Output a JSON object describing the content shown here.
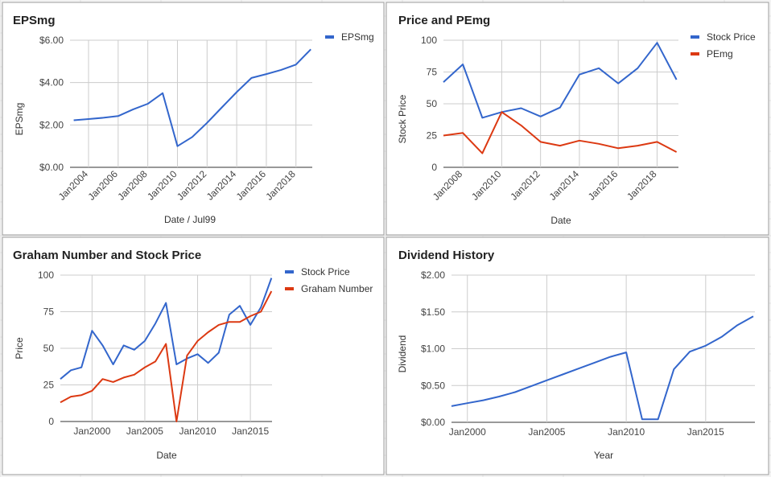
{
  "chart_data": [
    {
      "type": "line",
      "title": "EPSmg",
      "xlabel": "Date / Jul99",
      "ylabel": "EPSmg",
      "ylim": [
        0,
        6
      ],
      "yticks": [
        "$0.00",
        "$2.00",
        "$4.00",
        "$6.00"
      ],
      "xticks": [
        "Jan2004",
        "Jan2006",
        "Jan2008",
        "Jan2010",
        "Jan2012",
        "Jan2014",
        "Jan2016",
        "Jan2018"
      ],
      "legend_position": "right",
      "grid": true,
      "series": [
        {
          "name": "EPSmg",
          "color": "#3366cc",
          "points": [
            [
              "2003-01",
              2.22
            ],
            [
              "2004-01",
              2.28
            ],
            [
              "2005-01",
              2.34
            ],
            [
              "2006-01",
              2.42
            ],
            [
              "2007-01",
              2.73
            ],
            [
              "2008-01",
              3.0
            ],
            [
              "2009-01",
              3.5
            ],
            [
              "2010-01",
              1.0
            ],
            [
              "2011-01",
              1.43
            ],
            [
              "2012-01",
              2.1
            ],
            [
              "2013-01",
              2.83
            ],
            [
              "2014-01",
              3.55
            ],
            [
              "2015-01",
              4.22
            ],
            [
              "2016-01",
              4.4
            ],
            [
              "2017-01",
              4.6
            ],
            [
              "2018-01",
              4.85
            ],
            [
              "2019-01",
              5.57
            ]
          ]
        }
      ]
    },
    {
      "type": "line",
      "title": "Price and PEmg",
      "xlabel": "Date",
      "ylabel": "Stock Price",
      "ylim": [
        0,
        100
      ],
      "yticks": [
        "0",
        "25",
        "50",
        "75",
        "100"
      ],
      "xticks": [
        "Jan2008",
        "Jan2010",
        "Jan2012",
        "Jan2014",
        "Jan2016",
        "Jan2018"
      ],
      "legend_position": "right",
      "grid": true,
      "series": [
        {
          "name": "Stock Price",
          "color": "#3366cc",
          "points": [
            [
              "2007-01",
              67
            ],
            [
              "2008-01",
              81
            ],
            [
              "2009-01",
              39
            ],
            [
              "2010-01",
              43.5
            ],
            [
              "2011-01",
              46.5
            ],
            [
              "2012-01",
              40
            ],
            [
              "2013-01",
              47
            ],
            [
              "2014-01",
              73
            ],
            [
              "2015-01",
              78
            ],
            [
              "2016-01",
              66
            ],
            [
              "2017-01",
              78
            ],
            [
              "2018-01",
              98
            ],
            [
              "2019-01",
              69
            ]
          ]
        },
        {
          "name": "PEmg",
          "color": "#dc3912",
          "points": [
            [
              "2007-01",
              25
            ],
            [
              "2008-01",
              27
            ],
            [
              "2009-01",
              11
            ],
            [
              "2010-01",
              43.5
            ],
            [
              "2011-01",
              33
            ],
            [
              "2012-01",
              20
            ],
            [
              "2013-01",
              17
            ],
            [
              "2014-01",
              21
            ],
            [
              "2015-01",
              18.5
            ],
            [
              "2016-01",
              15
            ],
            [
              "2017-01",
              17
            ],
            [
              "2018-01",
              20
            ],
            [
              "2019-01",
              12
            ]
          ]
        }
      ]
    },
    {
      "type": "line",
      "title": "Graham Number and Stock Price",
      "xlabel": "Date",
      "ylabel": "Price",
      "ylim": [
        0,
        100
      ],
      "yticks": [
        "0",
        "25",
        "50",
        "75",
        "100"
      ],
      "xticks": [
        "Jan2000",
        "Jan2005",
        "Jan2010",
        "Jan2015"
      ],
      "legend_position": "right",
      "grid": true,
      "series": [
        {
          "name": "Stock Price",
          "color": "#3366cc",
          "points": [
            [
              "1997-01",
              29
            ],
            [
              "1998-01",
              35
            ],
            [
              "1999-01",
              37
            ],
            [
              "2000-01",
              62
            ],
            [
              "2001-01",
              52
            ],
            [
              "2002-01",
              39
            ],
            [
              "2003-01",
              52
            ],
            [
              "2004-01",
              49
            ],
            [
              "2005-01",
              55
            ],
            [
              "2006-01",
              67
            ],
            [
              "2007-01",
              81
            ],
            [
              "2008-01",
              39
            ],
            [
              "2009-01",
              43
            ],
            [
              "2010-01",
              46
            ],
            [
              "2011-01",
              40
            ],
            [
              "2012-01",
              47
            ],
            [
              "2013-01",
              73
            ],
            [
              "2014-01",
              79
            ],
            [
              "2015-01",
              66
            ],
            [
              "2016-01",
              78
            ],
            [
              "2017-01",
              98
            ]
          ]
        },
        {
          "name": "Graham Number",
          "color": "#dc3912",
          "points": [
            [
              "1997-01",
              13
            ],
            [
              "1998-01",
              17
            ],
            [
              "1999-01",
              18
            ],
            [
              "2000-01",
              21
            ],
            [
              "2001-01",
              29
            ],
            [
              "2002-01",
              27
            ],
            [
              "2003-01",
              30
            ],
            [
              "2004-01",
              32
            ],
            [
              "2005-01",
              37
            ],
            [
              "2006-01",
              41
            ],
            [
              "2007-01",
              53
            ],
            [
              "2008-01",
              0
            ],
            [
              "2009-01",
              45
            ],
            [
              "2010-01",
              55
            ],
            [
              "2011-01",
              61
            ],
            [
              "2012-01",
              66
            ],
            [
              "2013-01",
              68
            ],
            [
              "2014-01",
              68
            ],
            [
              "2015-01",
              72
            ],
            [
              "2016-01",
              75
            ],
            [
              "2017-01",
              89
            ]
          ]
        }
      ]
    },
    {
      "type": "line",
      "title": "Dividend History",
      "xlabel": "Year",
      "ylabel": "Dividend",
      "ylim": [
        0,
        2
      ],
      "yticks": [
        "$0.00",
        "$0.50",
        "$1.00",
        "$1.50",
        "$2.00"
      ],
      "xticks": [
        "Jan2000",
        "Jan2005",
        "Jan2010",
        "Jan2015"
      ],
      "legend_position": "none",
      "grid": true,
      "series": [
        {
          "name": "",
          "color": "#3366cc",
          "points": [
            [
              "1999-01",
              0.22
            ],
            [
              "2000-01",
              0.26
            ],
            [
              "2001-01",
              0.3
            ],
            [
              "2002-01",
              0.35
            ],
            [
              "2003-01",
              0.41
            ],
            [
              "2004-01",
              0.49
            ],
            [
              "2005-01",
              0.57
            ],
            [
              "2006-01",
              0.65
            ],
            [
              "2007-01",
              0.73
            ],
            [
              "2008-01",
              0.81
            ],
            [
              "2009-01",
              0.89
            ],
            [
              "2010-01",
              0.95
            ],
            [
              "2011-01",
              0.04
            ],
            [
              "2012-01",
              0.04
            ],
            [
              "2013-01",
              0.72
            ],
            [
              "2014-01",
              0.96
            ],
            [
              "2015-01",
              1.04
            ],
            [
              "2016-01",
              1.16
            ],
            [
              "2017-01",
              1.32
            ],
            [
              "2018-01",
              1.44
            ]
          ]
        }
      ]
    }
  ]
}
